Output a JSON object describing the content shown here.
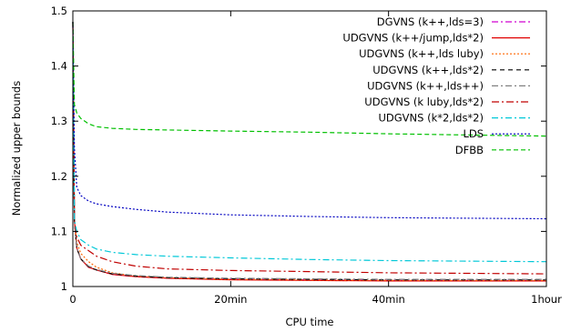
{
  "chart_data": {
    "type": "line",
    "xlabel": "CPU time",
    "ylabel": "Normalized upper bounds",
    "xlim": [
      0,
      60
    ],
    "ylim": [
      1,
      1.5
    ],
    "x_ticks": [
      {
        "value": 0,
        "label": "0"
      },
      {
        "value": 20,
        "label": "20min"
      },
      {
        "value": 40,
        "label": "40min"
      },
      {
        "value": 60,
        "label": "1hour"
      }
    ],
    "y_ticks": [
      {
        "value": 1,
        "label": "1"
      },
      {
        "value": 1.1,
        "label": "1.1"
      },
      {
        "value": 1.2,
        "label": "1.2"
      },
      {
        "value": 1.3,
        "label": "1.3"
      },
      {
        "value": 1.4,
        "label": "1.4"
      },
      {
        "value": 1.5,
        "label": "1.5"
      }
    ],
    "grid": false,
    "legend_position": "top-right",
    "series": [
      {
        "name": "DGVNS (k++,lds=3)",
        "color": "#d000d0",
        "dash": "7,3,2,3",
        "x": [
          0,
          0.2,
          0.5,
          1,
          2,
          3,
          5,
          8,
          12,
          20,
          30,
          40,
          50,
          60
        ],
        "y": [
          1.48,
          1.12,
          1.07,
          1.05,
          1.035,
          1.03,
          1.022,
          1.018,
          1.015,
          1.013,
          1.012,
          1.011,
          1.011,
          1.011
        ]
      },
      {
        "name": "UDGVNS (k++/jump,lds*2)",
        "color": "#e00000",
        "dash": "",
        "x": [
          0,
          0.2,
          0.5,
          1,
          2,
          3,
          5,
          8,
          12,
          20,
          30,
          40,
          50,
          60
        ],
        "y": [
          1.48,
          1.12,
          1.07,
          1.05,
          1.035,
          1.03,
          1.022,
          1.018,
          1.015,
          1.012,
          1.011,
          1.01,
          1.01,
          1.01
        ]
      },
      {
        "name": "UDGVNS (k++,lds luby)",
        "color": "#ff6600",
        "dash": "2,2",
        "x": [
          0,
          0.2,
          0.5,
          1,
          2,
          3,
          5,
          8,
          12,
          20,
          30,
          40,
          50,
          60
        ],
        "y": [
          1.48,
          1.12,
          1.08,
          1.06,
          1.045,
          1.035,
          1.025,
          1.019,
          1.016,
          1.013,
          1.012,
          1.011,
          1.011,
          1.011
        ]
      },
      {
        "name": "UDGVNS (k++,lds*2)",
        "color": "#000000",
        "dash": "5,4",
        "x": [
          0,
          0.2,
          0.5,
          1,
          2,
          3,
          5,
          8,
          12,
          20,
          30,
          40,
          50,
          60
        ],
        "y": [
          1.48,
          1.12,
          1.07,
          1.05,
          1.036,
          1.03,
          1.023,
          1.019,
          1.016,
          1.014,
          1.013,
          1.012,
          1.012,
          1.012
        ]
      },
      {
        "name": "UDGVNS (k++,lds++)",
        "color": "#808080",
        "dash": "7,3,2,3",
        "x": [
          0,
          0.2,
          0.5,
          1,
          2,
          3,
          5,
          8,
          12,
          20,
          30,
          40,
          50,
          60
        ],
        "y": [
          1.48,
          1.12,
          1.07,
          1.05,
          1.037,
          1.031,
          1.024,
          1.02,
          1.017,
          1.015,
          1.014,
          1.013,
          1.013,
          1.013
        ]
      },
      {
        "name": "UDGVNS (k luby,lds*2)",
        "color": "#c00000",
        "dash": "8,3,2,3",
        "x": [
          0,
          0.2,
          0.5,
          1,
          2,
          3,
          5,
          8,
          12,
          20,
          30,
          40,
          50,
          60
        ],
        "y": [
          1.48,
          1.12,
          1.09,
          1.075,
          1.065,
          1.055,
          1.045,
          1.037,
          1.032,
          1.029,
          1.027,
          1.025,
          1.024,
          1.023
        ]
      },
      {
        "name": "UDGVNS (k*2,lds*2)",
        "color": "#00c8d8",
        "dash": "7,3,2,3",
        "x": [
          0,
          0.2,
          0.5,
          1,
          2,
          3,
          5,
          8,
          12,
          20,
          30,
          40,
          50,
          60
        ],
        "y": [
          1.48,
          1.12,
          1.1,
          1.085,
          1.075,
          1.068,
          1.062,
          1.058,
          1.055,
          1.052,
          1.049,
          1.047,
          1.046,
          1.045
        ]
      },
      {
        "name": "LDS",
        "color": "#0000c0",
        "dash": "2,2",
        "x": [
          0,
          0.2,
          0.5,
          1,
          2,
          3,
          5,
          8,
          12,
          20,
          30,
          40,
          50,
          60
        ],
        "y": [
          1.48,
          1.25,
          1.18,
          1.165,
          1.155,
          1.15,
          1.145,
          1.14,
          1.135,
          1.13,
          1.127,
          1.125,
          1.124,
          1.123
        ]
      },
      {
        "name": "DFBB",
        "color": "#00c000",
        "dash": "5,3",
        "x": [
          0,
          0.2,
          0.5,
          1,
          2,
          3,
          5,
          8,
          12,
          20,
          30,
          40,
          50,
          60
        ],
        "y": [
          1.48,
          1.33,
          1.315,
          1.305,
          1.295,
          1.29,
          1.287,
          1.285,
          1.284,
          1.282,
          1.28,
          1.277,
          1.275,
          1.273
        ]
      }
    ]
  }
}
